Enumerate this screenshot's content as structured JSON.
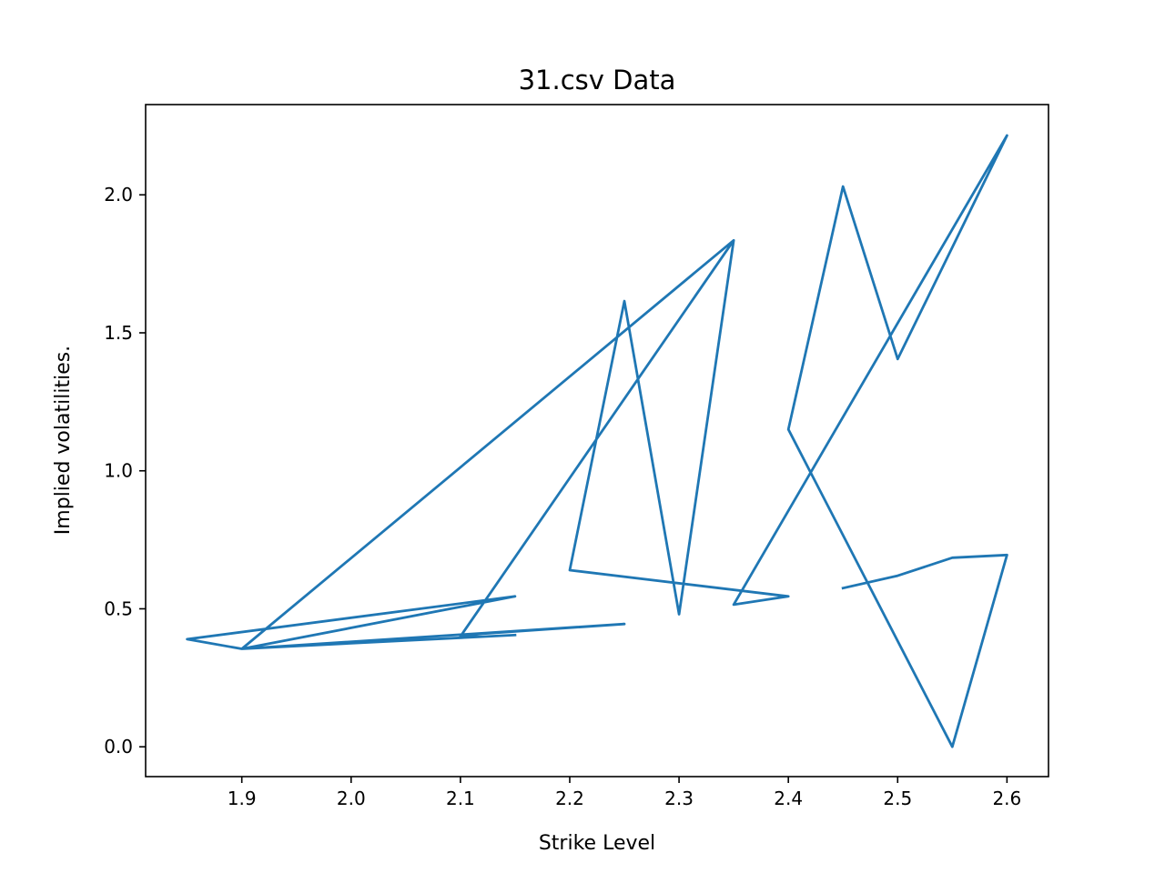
{
  "chart_data": {
    "type": "line",
    "title": "31.csv Data",
    "xlabel": "Strike Level",
    "ylabel": "Implied volatilities.",
    "xlim": [
      1.812,
      2.638
    ],
    "ylim": [
      -0.108,
      2.327
    ],
    "xticks": [
      1.9,
      2.0,
      2.1,
      2.2,
      2.3,
      2.4,
      2.5,
      2.6
    ],
    "xtick_labels": [
      "1.9",
      "2.0",
      "2.1",
      "2.2",
      "2.3",
      "2.4",
      "2.5",
      "2.6"
    ],
    "yticks": [
      0.0,
      0.5,
      1.0,
      1.5,
      2.0
    ],
    "ytick_labels": [
      "0.0",
      "0.5",
      "1.0",
      "1.5",
      "2.0"
    ],
    "grid": false,
    "line_color": "#1f77b4",
    "series": [
      {
        "x": [
          2.45,
          2.5,
          2.55,
          2.6,
          2.55,
          2.4,
          2.45,
          2.5,
          2.6,
          2.35,
          2.4,
          2.2,
          2.25,
          2.3,
          2.35,
          1.9,
          2.15,
          1.85,
          1.9,
          2.25,
          2.12,
          2.1,
          2.35,
          1.9,
          2.0,
          2.15
        ],
        "y": [
          0.575,
          0.62,
          0.685,
          0.695,
          0.0,
          1.15,
          2.03,
          1.405,
          2.215,
          0.515,
          0.545,
          0.64,
          1.615,
          0.48,
          1.835,
          0.355,
          0.545,
          0.39,
          0.355,
          0.445,
          0.41,
          0.4,
          1.835,
          0.355,
          0.375,
          0.405
        ]
      }
    ]
  }
}
